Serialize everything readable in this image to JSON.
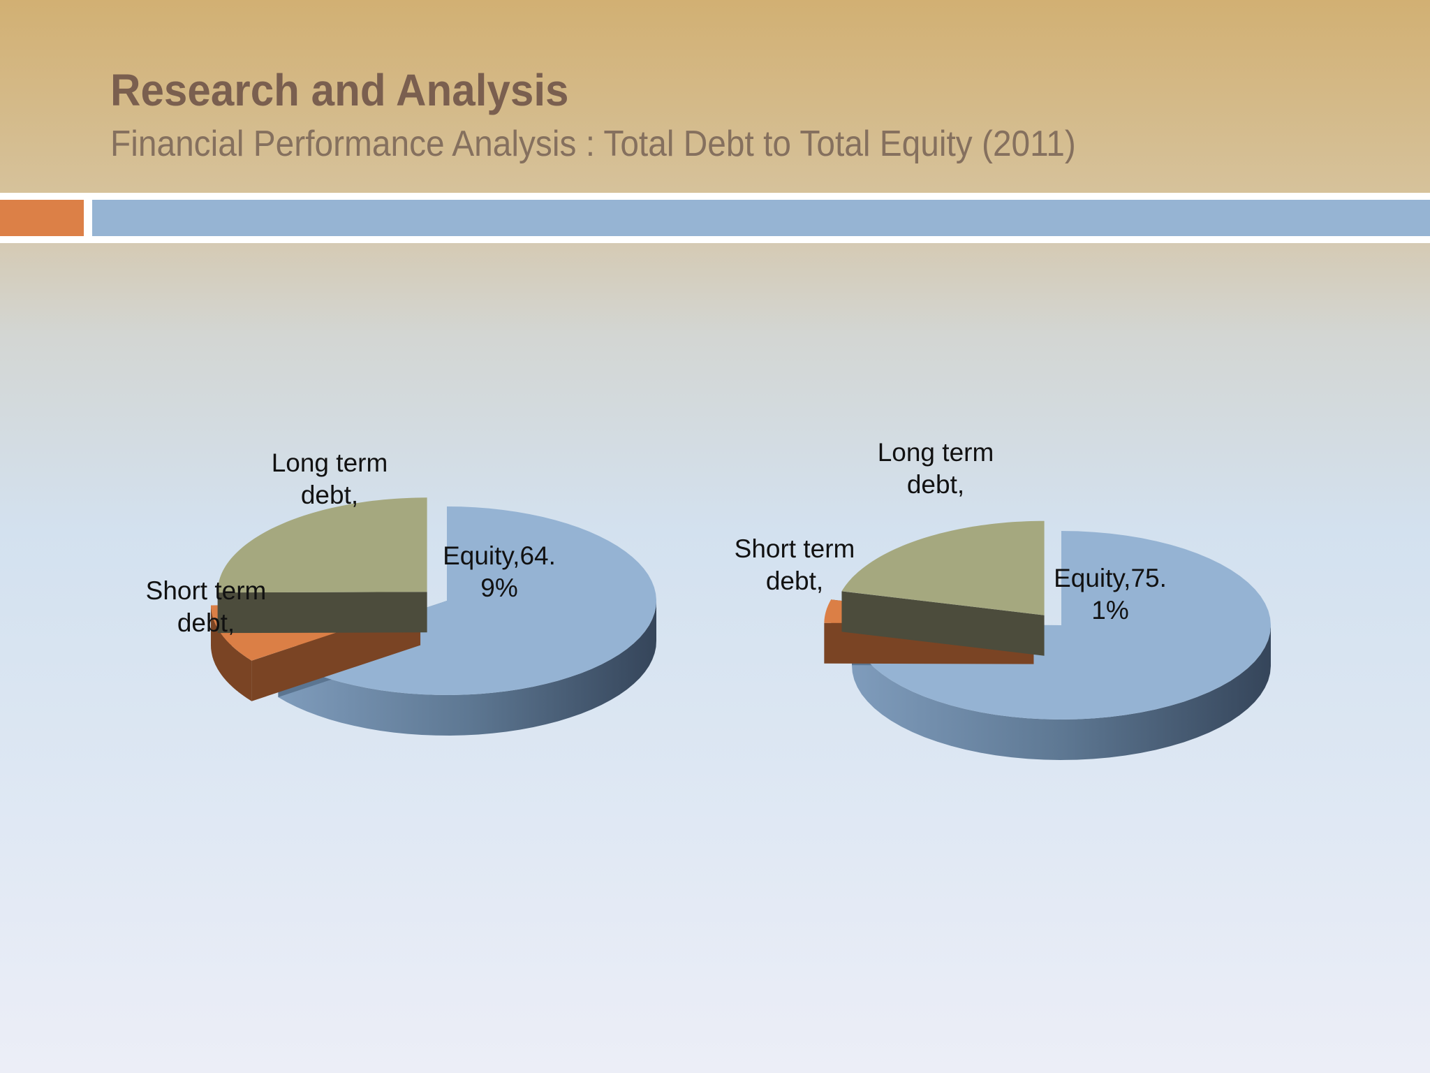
{
  "slide": {
    "title": "Research and Analysis",
    "subtitle": "Financial Performance Analysis : Total Debt to Total Equity (2011)"
  },
  "colors": {
    "equity": "#95b3d3",
    "long_term_debt": "#a5a87f",
    "short_term_debt": "#db7f46",
    "header_bar_orange": "#dc8047",
    "header_bar_blue": "#96b4d3"
  },
  "chart_data": [
    {
      "type": "pie",
      "style": "3d-exploded",
      "slices": [
        {
          "category": "Equity",
          "label_line1": "Equity,64.",
          "label_line2": "9%",
          "value": 64.9
        },
        {
          "category": "Short term debt",
          "label_line1": "Short term",
          "label_line2": "debt,",
          "value": 10.0
        },
        {
          "category": "Long term debt",
          "label_line1": "Long term",
          "label_line2": "debt,",
          "value": 25.1
        }
      ]
    },
    {
      "type": "pie",
      "style": "3d-exploded",
      "slices": [
        {
          "category": "Equity",
          "label_line1": "Equity,75.",
          "label_line2": "1%",
          "value": 75.1
        },
        {
          "category": "Short term debt",
          "label_line1": "Short term",
          "label_line2": "debt,",
          "value": 4.0
        },
        {
          "category": "Long term debt",
          "label_line1": "Long term",
          "label_line2": "debt,",
          "value": 20.9
        }
      ]
    }
  ]
}
